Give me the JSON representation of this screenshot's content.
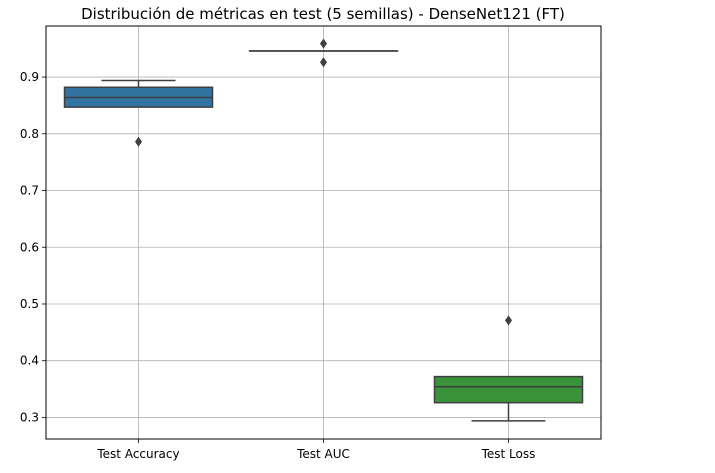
{
  "chart_data": {
    "type": "boxplot",
    "title": "Distribución de métricas en test (5 semillas) - DenseNet121 (FT)",
    "xlabel": "",
    "ylabel": "",
    "ylim": [
      0.262,
      0.99
    ],
    "yticks": [
      0.3,
      0.4,
      0.5,
      0.6,
      0.7,
      0.8,
      0.9
    ],
    "ytick_labels": [
      "0.3",
      "0.4",
      "0.5",
      "0.6",
      "0.7",
      "0.8",
      "0.9"
    ],
    "grid": true,
    "categories": [
      "Test Accuracy",
      "Test AUC",
      "Test Loss"
    ],
    "boxes": [
      {
        "q1": 0.847,
        "median": 0.864,
        "q3": 0.882,
        "whisker_low": 0.847,
        "whisker_high": 0.894,
        "outliers": [
          0.786
        ],
        "color": "#3274a1"
      },
      {
        "q1": 0.946,
        "median": 0.946,
        "q3": 0.946,
        "whisker_low": 0.946,
        "whisker_high": 0.946,
        "outliers": [
          0.959,
          0.926
        ],
        "color": "#e1812c"
      },
      {
        "q1": 0.326,
        "median": 0.354,
        "q3": 0.372,
        "whisker_low": 0.294,
        "whisker_high": 0.372,
        "outliers": [
          0.471
        ],
        "color": "#3a923a"
      }
    ]
  }
}
